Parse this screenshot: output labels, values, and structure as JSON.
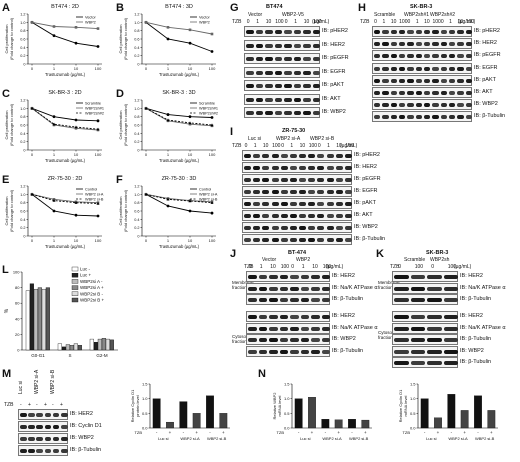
{
  "panels": {
    "A": {
      "letter": "A",
      "title": "BT474 : 2D",
      "ylabel": "Cell proliferation\n(Fold change to control)",
      "xlabel": "Trastuzumab (µg/mL)",
      "legend": [
        "Vector",
        "WBP2"
      ]
    },
    "B": {
      "letter": "B",
      "title": "BT474 : 3D",
      "ylabel": "Cell proliferation\n(Fold change to control)",
      "xlabel": "Trastuzumab (µg/mL)",
      "legend": [
        "Vector",
        "WBP2"
      ]
    },
    "C": {
      "letter": "C",
      "title": "SK-BR-3 : 2D",
      "ylabel": "Cell proliferation\n(Fold change to control)",
      "xlabel": "Trastuzumab (µg/mL)",
      "legend": [
        "Scramble",
        "WBP2sh#1",
        "WBP2sh#2"
      ]
    },
    "D": {
      "letter": "D",
      "title": "SK-BR-3 : 3D",
      "ylabel": "Cell proliferation\n(Fold change to control)",
      "xlabel": "Trastuzumab (µg/mL)",
      "legend": [
        "Scramble",
        "WBP2sh#1",
        "WBP2sh#2"
      ]
    },
    "E": {
      "letter": "E",
      "title": "ZR-75-30 : 2D",
      "ylabel": "Cell proliferation\n(Fold change to control)",
      "xlabel": "Trastuzumab (µg/mL)",
      "legend": [
        "Control",
        "WBP2 si-A",
        "WBP2 si-B"
      ]
    },
    "F": {
      "letter": "F",
      "title": "ZR-75-30 : 3D",
      "ylabel": "Cell proliferation\n(Fold change to control)",
      "xlabel": "Trastuzumab (µg/mL)",
      "legend": [
        "Control",
        "WBP2 si-A",
        "WBP2 si-B"
      ]
    },
    "G": {
      "letter": "G",
      "title": "BT474",
      "groups": [
        "Vector",
        "WBP2-V5"
      ],
      "tzb_label": "TZB",
      "doses": [
        "0",
        "1",
        "10",
        "100",
        "0",
        "1",
        "10",
        "100"
      ],
      "unit": "(µg/mL)",
      "rows": [
        "IB: pHER2",
        "IB: HER2",
        "IB: pEGFR",
        "IB: EGFR",
        "IB: pAKT",
        "IB: AKT",
        "IB: WBP2"
      ]
    },
    "H": {
      "letter": "H",
      "title": "SK-BR-3",
      "groups": [
        "Scramble",
        "WBP2sh#1",
        "WBP2sh#2"
      ],
      "tzb_label": "TZB",
      "doses": [
        "0",
        "1",
        "10",
        "100",
        "0",
        "1",
        "10",
        "100",
        "0",
        "1",
        "10",
        "100"
      ],
      "unit": "(µg/mL)",
      "rows": [
        "IB: pHER2",
        "IB: HER2",
        "IB: pEGFR",
        "IB: EGFR",
        "IB: pAKT",
        "IB: AKT",
        "IB: WBP2",
        "IB: β-Tubulin"
      ]
    },
    "I": {
      "letter": "I",
      "title": "ZR-75-30",
      "groups": [
        "Luc si",
        "WBP2 si-A",
        "WBP2 si-B"
      ],
      "tzb_label": "TZB",
      "doses": [
        "0",
        "1",
        "10",
        "100",
        "0",
        "1",
        "10",
        "100",
        "0",
        "1",
        "10",
        "100"
      ],
      "unit": "(µg/mL)",
      "rows": [
        "IB: pHER2",
        "IB: HER2",
        "IB: pEGFR",
        "IB: EGFR",
        "IB: pAKT",
        "IB: AKT",
        "IB: WBP2",
        "IB: β-Tubulin"
      ]
    },
    "J": {
      "letter": "J",
      "title": "BT-474",
      "groups": [
        "Vector",
        "WBP2"
      ],
      "tzb_label": "TZB",
      "doses": [
        "0",
        "1",
        "10",
        "100",
        "0",
        "1",
        "10",
        "100"
      ],
      "unit": "(µg/mL)",
      "frac1": "Membrane fraction",
      "frac2": "Cytosol fraction",
      "rows1": [
        "IB: HER2",
        "IB: Na/K ATPase α",
        "IB: β-Tubulin"
      ],
      "rows2": [
        "IB: HER2",
        "IB: Na/K ATPase α",
        "IB: WBP2",
        "IB: β-Tubulin"
      ]
    },
    "K": {
      "letter": "K",
      "title": "SK-BR-3",
      "groups": [
        "Scramble",
        "WBP2sh"
      ],
      "tzb_label": "TZB",
      "doses": [
        "0",
        "100",
        "0",
        "100"
      ],
      "unit": "(µg/mL)",
      "frac1": "Membrane fraction",
      "frac2": "Cytosol fraction",
      "rows1": [
        "IB: HER2",
        "IB: Na/K ATPase α",
        "IB: β-Tubulin"
      ],
      "rows2": [
        "IB: HER2",
        "IB: Na/K ATPase α",
        "IB: β-Tubulin",
        "IB: WBP2",
        "IB: β-Tubulin"
      ]
    },
    "L": {
      "letter": "L",
      "ylabel": "%",
      "legend": [
        "Luc -",
        "Luc +",
        "WBP2si A -",
        "WBP2si A +",
        "WBP2si B -",
        "WBP2si B +"
      ]
    },
    "M": {
      "letter": "M",
      "lanes": [
        "Luc si",
        "WBP2 si-A",
        "WBP2 si-B"
      ],
      "tzb_label": "TZB",
      "signs": [
        "-",
        "+",
        "-",
        "+",
        "-",
        "+"
      ],
      "rows": [
        "IB: HER2",
        "IB: Cyclin D1",
        "IB: WBP2",
        "IB: β-Tubulin"
      ],
      "ylabel": "Relative Cyclin D1\nprotein level"
    },
    "N": {
      "letter": "N",
      "ylabel1": "Relative WBP2\nmRNA level",
      "ylabel2": "Relative Cyclin D1\nmRNA level",
      "tzb_label": "TZB"
    }
  },
  "chart_data": [
    {
      "type": "line",
      "panel": "A",
      "x": [
        0,
        1,
        10,
        100
      ],
      "x_ticks": [
        "0",
        "1",
        "10",
        "100"
      ],
      "ylim": [
        0,
        1.2
      ],
      "y_ticks": [
        "0",
        "0.2",
        "0.4",
        "0.6",
        "0.8",
        "1.0",
        "1.2"
      ],
      "series": [
        {
          "name": "Vector",
          "values": [
            1.0,
            0.68,
            0.5,
            0.42
          ]
        },
        {
          "name": "WBP2",
          "values": [
            1.0,
            0.9,
            0.88,
            0.85
          ]
        }
      ]
    },
    {
      "type": "line",
      "panel": "B",
      "x": [
        0,
        1,
        10,
        100
      ],
      "x_ticks": [
        "0",
        "1",
        "10",
        "100"
      ],
      "ylim": [
        0,
        1.2
      ],
      "y_ticks": [
        "0",
        "0.2",
        "0.4",
        "0.6",
        "0.8",
        "1.0",
        "1.2"
      ],
      "series": [
        {
          "name": "Vector",
          "values": [
            1.0,
            0.6,
            0.5,
            0.3
          ]
        },
        {
          "name": "WBP2",
          "values": [
            1.0,
            0.88,
            0.82,
            0.72
          ]
        }
      ]
    },
    {
      "type": "line",
      "panel": "C",
      "x": [
        0,
        1,
        10,
        100
      ],
      "x_ticks": [
        "0",
        "1",
        "10",
        "100"
      ],
      "ylim": [
        0,
        1.2
      ],
      "y_ticks": [
        "0",
        "0.2",
        "0.4",
        "0.6",
        "0.8",
        "1.0",
        "1.2"
      ],
      "series": [
        {
          "name": "Scramble",
          "values": [
            1.0,
            0.8,
            0.72,
            0.7
          ]
        },
        {
          "name": "WBP2sh#1",
          "values": [
            1.0,
            0.6,
            0.52,
            0.48
          ]
        },
        {
          "name": "WBP2sh#2",
          "values": [
            1.0,
            0.62,
            0.55,
            0.5
          ]
        }
      ]
    },
    {
      "type": "line",
      "panel": "D",
      "x": [
        0,
        1,
        10,
        100
      ],
      "x_ticks": [
        "0",
        "1",
        "10",
        "100"
      ],
      "ylim": [
        0,
        1.2
      ],
      "y_ticks": [
        "0",
        "0.2",
        "0.4",
        "0.6",
        "0.8",
        "1.0",
        "1.2"
      ],
      "series": [
        {
          "name": "Scramble",
          "values": [
            1.0,
            0.85,
            0.8,
            0.78
          ]
        },
        {
          "name": "WBP2sh#1",
          "values": [
            1.0,
            0.7,
            0.62,
            0.58
          ]
        },
        {
          "name": "WBP2sh#2",
          "values": [
            1.0,
            0.72,
            0.65,
            0.6
          ]
        }
      ]
    },
    {
      "type": "line",
      "panel": "E",
      "x": [
        0,
        1,
        10,
        100
      ],
      "x_ticks": [
        "0",
        "1",
        "10",
        "100"
      ],
      "ylim": [
        0,
        1.2
      ],
      "y_ticks": [
        "0",
        "0.2",
        "0.4",
        "0.6",
        "0.8",
        "1.0",
        "1.2"
      ],
      "series": [
        {
          "name": "Control",
          "values": [
            1.0,
            0.6,
            0.5,
            0.48
          ]
        },
        {
          "name": "WBP2 si-A",
          "values": [
            1.0,
            0.88,
            0.82,
            0.8
          ]
        },
        {
          "name": "WBP2 si-B",
          "values": [
            1.0,
            0.85,
            0.8,
            0.78
          ]
        }
      ]
    },
    {
      "type": "line",
      "panel": "F",
      "x": [
        0,
        1,
        10,
        100
      ],
      "x_ticks": [
        "0",
        "1",
        "10",
        "100"
      ],
      "ylim": [
        0,
        1.2
      ],
      "y_ticks": [
        "0",
        "0.2",
        "0.4",
        "0.6",
        "0.8",
        "1.0",
        "1.2"
      ],
      "series": [
        {
          "name": "Control",
          "values": [
            1.0,
            0.72,
            0.6,
            0.55
          ]
        },
        {
          "name": "WBP2 si-A",
          "values": [
            1.0,
            0.9,
            0.85,
            0.82
          ]
        },
        {
          "name": "WBP2 si-B",
          "values": [
            1.0,
            0.88,
            0.84,
            0.8
          ]
        }
      ]
    },
    {
      "type": "bar",
      "panel": "L",
      "categories": [
        "G0-G1",
        "S",
        "G2-M"
      ],
      "ylim": [
        0,
        100
      ],
      "y_ticks": [
        "0",
        "20",
        "40",
        "60",
        "80",
        "100"
      ],
      "series": [
        {
          "name": "Luc -",
          "values": [
            76,
            8,
            14
          ]
        },
        {
          "name": "Luc +",
          "values": [
            85,
            4,
            10
          ]
        },
        {
          "name": "WBP2si A -",
          "values": [
            78,
            7,
            14
          ]
        },
        {
          "name": "WBP2si A +",
          "values": [
            80,
            6,
            15
          ]
        },
        {
          "name": "WBP2si B -",
          "values": [
            78,
            8,
            14
          ]
        },
        {
          "name": "WBP2si B +",
          "values": [
            80,
            6,
            13
          ]
        }
      ]
    },
    {
      "type": "bar",
      "panel": "M",
      "categories": [
        "Luc si -",
        "Luc si +",
        "WBP2 si-A -",
        "WBP2 si-A +",
        "WBP2 si-B -",
        "WBP2 si-B +"
      ],
      "ylim": [
        0,
        1.5
      ],
      "y_ticks": [
        "0.0",
        "0.5",
        "1.0",
        "1.5"
      ],
      "values": [
        1.0,
        0.2,
        0.9,
        0.5,
        1.1,
        0.5
      ]
    },
    {
      "type": "bar",
      "panel": "N1",
      "categories": [
        "Luc si -",
        "Luc si +",
        "WBP2 si-A -",
        "WBP2 si-A +",
        "WBP2 si-B -",
        "WBP2 si-B +"
      ],
      "ylim": [
        0,
        1.5
      ],
      "y_ticks": [
        "0.0",
        "0.5",
        "1.0",
        "1.5"
      ],
      "values": [
        1.0,
        1.05,
        0.3,
        0.28,
        0.3,
        0.27
      ]
    },
    {
      "type": "bar",
      "panel": "N2",
      "categories": [
        "Luc si -",
        "Luc si +",
        "WBP2 si-A -",
        "WBP2 si-A +",
        "WBP2 si-B -",
        "WBP2 si-B +"
      ],
      "ylim": [
        0,
        1.5
      ],
      "y_ticks": [
        "0.0",
        "0.5",
        "1.0",
        "1.5"
      ],
      "values": [
        1.0,
        0.35,
        1.15,
        0.6,
        1.1,
        0.6
      ]
    }
  ]
}
